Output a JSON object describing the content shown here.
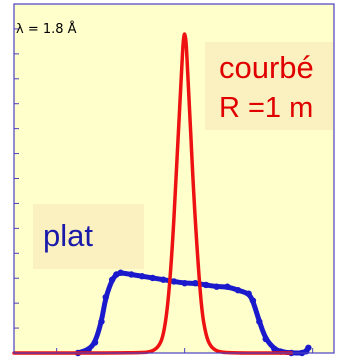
{
  "chart_data": {
    "type": "line",
    "xlim": [
      -8,
      7
    ],
    "ylim": [
      0,
      1.0
    ],
    "grid": false,
    "annotations": {
      "wavelength": "λ = 1.8 Å",
      "curved_line1": "courbé",
      "curved_line2": "R =1 m",
      "flat": "plat"
    },
    "series": [
      {
        "color": "#ee1111",
        "x": [
          -8.0,
          -2.0,
          -1.5,
          -1.2,
          -1.0,
          -0.8,
          -0.6,
          -0.4,
          -0.2,
          0.0,
          0.2,
          0.4,
          0.6,
          0.8,
          1.0,
          1.2,
          1.5,
          2.0,
          5.0
        ],
        "y": [
          0.0,
          0.0,
          0.005,
          0.02,
          0.05,
          0.13,
          0.28,
          0.5,
          0.75,
          0.97,
          0.74,
          0.48,
          0.28,
          0.12,
          0.05,
          0.02,
          0.005,
          0.0,
          0.0
        ]
      },
      {
        "color": "#1a1acc",
        "x": [
          -5.0,
          -4.5,
          -4.2,
          -3.9,
          -3.7,
          -3.4,
          -3.2,
          -3.0,
          -2.5,
          -2.0,
          -1.5,
          -1.0,
          -0.5,
          0.0,
          0.5,
          1.0,
          1.5,
          2.0,
          2.5,
          3.0,
          3.2,
          3.5,
          3.8,
          4.2,
          4.5,
          5.0,
          5.5,
          5.7,
          5.8
        ],
        "y": [
          0.0,
          0.01,
          0.03,
          0.09,
          0.16,
          0.21,
          0.225,
          0.23,
          0.225,
          0.22,
          0.215,
          0.21,
          0.205,
          0.2,
          0.2,
          0.195,
          0.19,
          0.19,
          0.18,
          0.17,
          0.15,
          0.09,
          0.04,
          0.012,
          0.004,
          0.0,
          0.0,
          0.005,
          0.015
        ]
      }
    ]
  },
  "colors": {
    "background": "#ffffcc",
    "label_box": "#fbf0c0",
    "axes": "#4a3fc0"
  }
}
